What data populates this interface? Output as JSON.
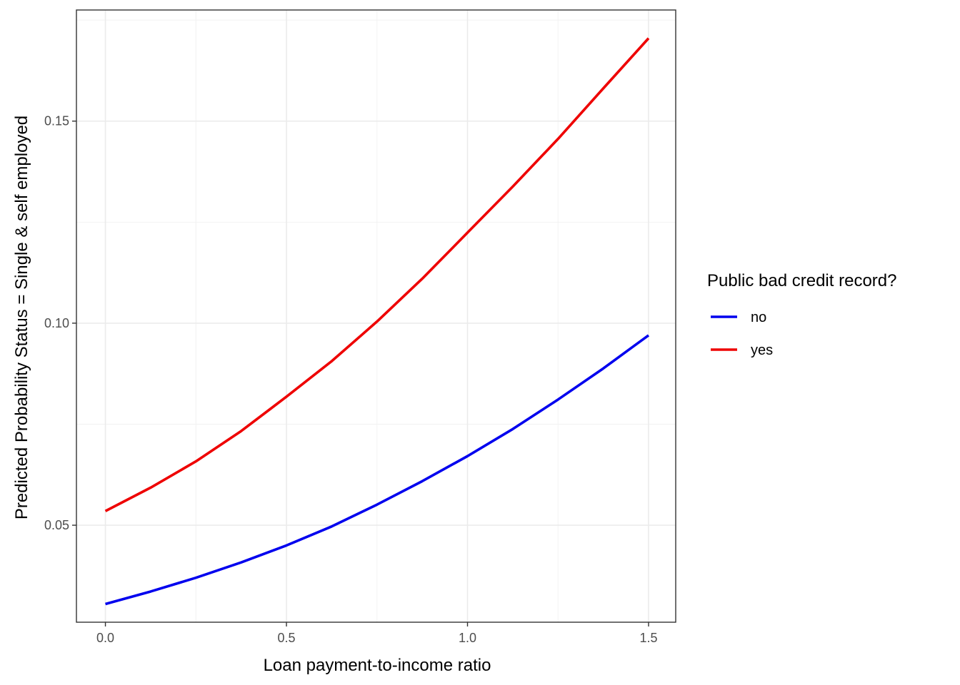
{
  "chart_data": {
    "type": "line",
    "title": "",
    "xlabel": "Loan payment-to-income ratio",
    "ylabel": "Predicted Probability Status = Single & self employed",
    "xlim": [
      -0.08,
      1.575
    ],
    "ylim": [
      0.026,
      0.1775
    ],
    "x_ticks": [
      0.0,
      0.5,
      1.0,
      1.5
    ],
    "x_tick_labels": [
      "0.0",
      "0.5",
      "1.0",
      "1.5"
    ],
    "y_ticks": [
      0.05,
      0.1,
      0.15
    ],
    "y_tick_labels": [
      "0.05",
      "0.10",
      "0.15"
    ],
    "grid": true,
    "legend": {
      "title": "Public bad credit record?",
      "placement": "right"
    },
    "x": [
      0.0,
      0.125,
      0.25,
      0.375,
      0.5,
      0.625,
      0.75,
      0.875,
      1.0,
      1.125,
      1.25,
      1.375,
      1.5
    ],
    "series": [
      {
        "name": "no",
        "color": "#0000ee",
        "values": [
          0.0305,
          0.0336,
          0.037,
          0.0408,
          0.045,
          0.0497,
          0.0551,
          0.0609,
          0.0671,
          0.0738,
          0.0811,
          0.0888,
          0.097
        ]
      },
      {
        "name": "yes",
        "color": "#ee0000",
        "values": [
          0.0535,
          0.0593,
          0.0658,
          0.0733,
          0.0818,
          0.0906,
          0.1004,
          0.111,
          0.1224,
          0.1338,
          0.1456,
          0.1581,
          0.1705
        ]
      }
    ]
  }
}
